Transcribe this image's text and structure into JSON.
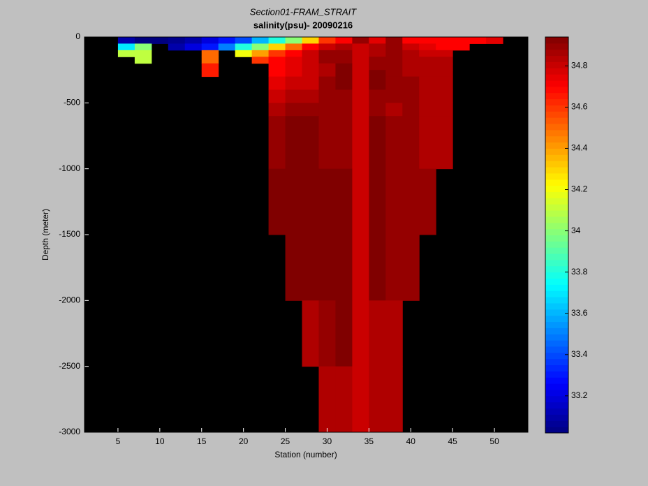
{
  "chart_data": {
    "type": "heatmap",
    "title": "Section01-FRAM_STRAIT",
    "subtitle": "salinity(psu)- 20090216",
    "x_label": "Station (number)",
    "y_label": "Depth (meter)",
    "xlim": [
      1,
      54
    ],
    "xticks": [
      5,
      10,
      15,
      20,
      25,
      30,
      35,
      40,
      45,
      50
    ],
    "ylim": [
      -3000,
      0
    ],
    "yticks": [
      -3000,
      -2500,
      -2000,
      -1500,
      -1000,
      -500,
      0
    ],
    "colormap": "jet",
    "clim": [
      33.02,
      34.94
    ],
    "cticks": [
      33.2,
      33.4,
      33.6,
      33.8,
      34,
      34.2,
      34.4,
      34.6,
      34.8
    ],
    "background": "#000000",
    "x_edges": [
      5,
      7,
      9,
      11,
      13,
      15,
      17,
      19,
      21,
      23,
      25,
      27,
      29,
      31,
      33,
      35,
      37,
      39,
      41,
      43,
      45,
      47,
      49,
      51
    ],
    "y_edges": [
      0,
      -50,
      -100,
      -150,
      -200,
      -250,
      -300,
      -400,
      -500,
      -600,
      -1000,
      -1500,
      -2000,
      -2500,
      -3000
    ],
    "z": [
      [
        33.1,
        33.0,
        33.0,
        33.05,
        33.1,
        33.2,
        33.3,
        33.4,
        33.6,
        33.8,
        34.0,
        34.3,
        34.6,
        34.7,
        34.9,
        34.75,
        34.9,
        34.7,
        34.7,
        34.7,
        34.7,
        34.7,
        34.75
      ],
      [
        33.7,
        34.0,
        null,
        33.1,
        33.2,
        33.3,
        33.5,
        33.8,
        34.0,
        34.3,
        34.5,
        34.7,
        34.8,
        34.85,
        34.8,
        34.85,
        34.9,
        34.8,
        34.75,
        34.7,
        34.7,
        null,
        null
      ],
      [
        34.1,
        34.1,
        null,
        null,
        null,
        34.5,
        null,
        34.2,
        34.4,
        34.6,
        34.7,
        34.8,
        34.9,
        34.9,
        34.8,
        34.85,
        34.9,
        34.85,
        34.8,
        34.8,
        null,
        null,
        null
      ],
      [
        null,
        34.1,
        null,
        null,
        null,
        34.5,
        null,
        null,
        34.6,
        34.7,
        34.75,
        34.8,
        34.9,
        34.9,
        34.8,
        34.9,
        34.9,
        34.85,
        34.85,
        34.85,
        null,
        null,
        null
      ],
      [
        null,
        null,
        null,
        null,
        null,
        34.65,
        null,
        null,
        null,
        34.7,
        34.75,
        34.8,
        34.85,
        34.95,
        34.8,
        34.9,
        34.9,
        34.85,
        34.85,
        34.85,
        null,
        null,
        null
      ],
      [
        null,
        null,
        null,
        null,
        null,
        34.65,
        null,
        null,
        null,
        34.7,
        34.75,
        34.8,
        34.85,
        34.95,
        34.8,
        34.95,
        34.9,
        34.85,
        34.85,
        34.85,
        null,
        null,
        null
      ],
      [
        null,
        null,
        null,
        null,
        null,
        null,
        null,
        null,
        null,
        34.75,
        34.8,
        34.8,
        34.9,
        34.95,
        34.8,
        34.95,
        34.9,
        34.9,
        34.85,
        34.85,
        null,
        null,
        null
      ],
      [
        null,
        null,
        null,
        null,
        null,
        null,
        null,
        null,
        null,
        34.8,
        34.85,
        34.85,
        34.9,
        34.9,
        34.8,
        34.9,
        34.9,
        34.9,
        34.85,
        34.85,
        null,
        null,
        null
      ],
      [
        null,
        null,
        null,
        null,
        null,
        null,
        null,
        null,
        null,
        34.85,
        34.9,
        34.9,
        34.9,
        34.9,
        34.8,
        34.9,
        34.85,
        34.9,
        34.85,
        34.85,
        null,
        null,
        null
      ],
      [
        null,
        null,
        null,
        null,
        null,
        null,
        null,
        null,
        null,
        34.9,
        34.95,
        34.95,
        34.9,
        34.9,
        34.8,
        34.95,
        34.9,
        34.9,
        34.85,
        34.85,
        null,
        null,
        null
      ],
      [
        null,
        null,
        null,
        null,
        null,
        null,
        null,
        null,
        null,
        34.95,
        34.95,
        34.95,
        34.95,
        34.95,
        34.8,
        34.95,
        34.9,
        34.9,
        34.9,
        null,
        null,
        null,
        null
      ],
      [
        null,
        null,
        null,
        null,
        null,
        null,
        null,
        null,
        null,
        null,
        34.95,
        34.95,
        34.95,
        34.95,
        34.8,
        34.95,
        34.9,
        34.9,
        null,
        null,
        null,
        null,
        null
      ],
      [
        null,
        null,
        null,
        null,
        null,
        null,
        null,
        null,
        null,
        null,
        null,
        34.85,
        34.9,
        34.95,
        34.8,
        34.85,
        34.85,
        null,
        null,
        null,
        null,
        null,
        null
      ],
      [
        null,
        null,
        null,
        null,
        null,
        null,
        null,
        null,
        null,
        null,
        null,
        null,
        34.85,
        34.85,
        34.8,
        34.85,
        34.85,
        null,
        null,
        null,
        null,
        null,
        null
      ]
    ]
  }
}
